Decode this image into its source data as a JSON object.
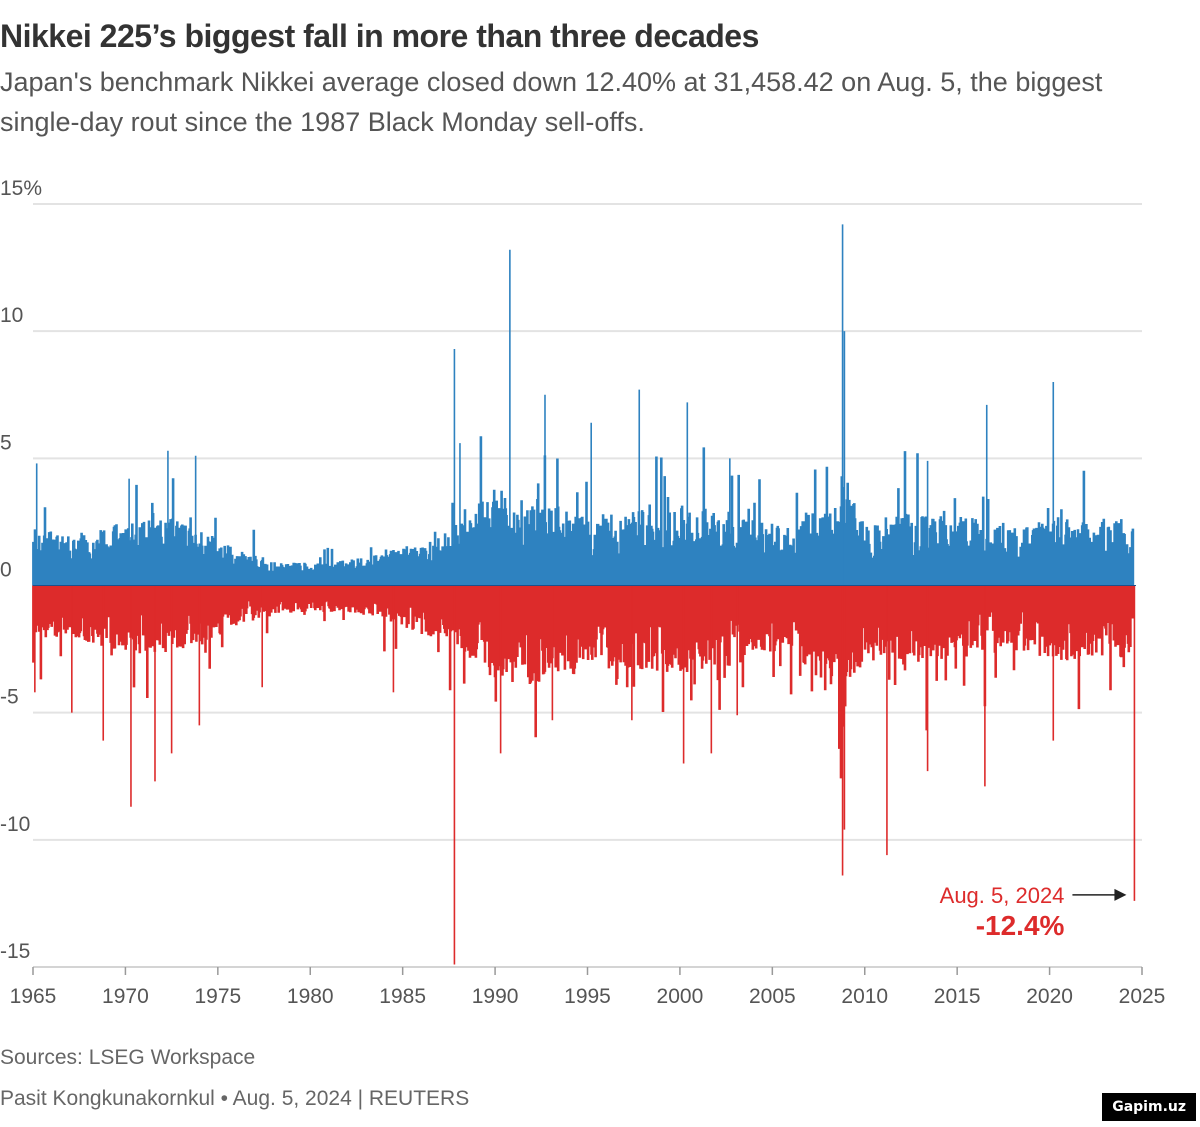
{
  "header": {
    "title": "Nikkei 225’s biggest fall in more than three decades",
    "subtitle": "Japan's benchmark Nikkei average closed down 12.40% at 31,458.42 on Aug. 5, the biggest single-day rout since the 1987 Black Monday sell-offs."
  },
  "footer": {
    "source": "Sources: LSEG Workspace",
    "credit": "Pasit Kongkunakornkul • Aug. 5, 2024 | REUTERS",
    "badge": "Gapim.uz"
  },
  "chart_data": {
    "type": "bar",
    "title": "Nikkei 225’s biggest fall in more than three decades",
    "xlabel": "",
    "ylabel": "",
    "xlim": [
      1965,
      2025
    ],
    "ylim": [
      -15,
      15
    ],
    "x_ticks": [
      "1965",
      "1970",
      "1975",
      "1980",
      "1985",
      "1990",
      "1995",
      "2000",
      "2005",
      "2010",
      "2015",
      "2020",
      "2025"
    ],
    "y_ticks": [
      {
        "value": 15,
        "label": "15%"
      },
      {
        "value": 10,
        "label": "10"
      },
      {
        "value": 5,
        "label": "5"
      },
      {
        "value": 0,
        "label": "0"
      },
      {
        "value": -5,
        "label": "-5"
      },
      {
        "value": -10,
        "label": "-10"
      },
      {
        "value": -15,
        "label": "-15"
      }
    ],
    "grid": true,
    "colors": {
      "positive": "#2e82c0",
      "negative": "#dd2b2b",
      "grid": "#e3e3e3",
      "axis": "#cfcfcf"
    },
    "series": [
      {
        "sign": "positive",
        "points": [
          [
            1965.2,
            4.8
          ],
          [
            1970.2,
            4.2
          ],
          [
            1972.3,
            5.3
          ],
          [
            1973.8,
            5.1
          ],
          [
            1987.8,
            9.3
          ],
          [
            1988.1,
            5.6
          ],
          [
            1990.8,
            13.2
          ],
          [
            1992.7,
            7.5
          ],
          [
            1995.2,
            6.4
          ],
          [
            1997.8,
            7.7
          ],
          [
            2000.4,
            7.2
          ],
          [
            2002.7,
            5.0
          ],
          [
            2008.8,
            14.2
          ],
          [
            2008.9,
            10.0
          ],
          [
            2013.4,
            4.9
          ],
          [
            2016.6,
            7.1
          ],
          [
            2020.2,
            8.0
          ]
        ],
        "envelope": [
          [
            1965,
            2.3
          ],
          [
            1967,
            2.0
          ],
          [
            1970,
            2.5
          ],
          [
            1972,
            2.8
          ],
          [
            1974,
            2.4
          ],
          [
            1976,
            1.4
          ],
          [
            1978,
            1.0
          ],
          [
            1980,
            0.9
          ],
          [
            1983,
            1.1
          ],
          [
            1985,
            1.5
          ],
          [
            1987,
            2.0
          ],
          [
            1988,
            2.5
          ],
          [
            1990,
            3.8
          ],
          [
            1992,
            3.5
          ],
          [
            1995,
            2.8
          ],
          [
            1998,
            3.0
          ],
          [
            2000,
            3.2
          ],
          [
            2003,
            2.9
          ],
          [
            2006,
            2.3
          ],
          [
            2008.8,
            4.5
          ],
          [
            2010,
            2.5
          ],
          [
            2013,
            3.0
          ],
          [
            2015,
            2.8
          ],
          [
            2018,
            2.4
          ],
          [
            2020,
            2.8
          ],
          [
            2024.5,
            2.6
          ]
        ]
      },
      {
        "sign": "negative",
        "points": [
          [
            1965.1,
            -4.2
          ],
          [
            1967.1,
            -5.0
          ],
          [
            1968.8,
            -6.1
          ],
          [
            1970.3,
            -8.7
          ],
          [
            1971.6,
            -7.7
          ],
          [
            1972.5,
            -6.6
          ],
          [
            1974.0,
            -5.5
          ],
          [
            1977.4,
            -4.0
          ],
          [
            1984.5,
            -4.2
          ],
          [
            1987.8,
            -14.9
          ],
          [
            1990.3,
            -6.6
          ],
          [
            1993.1,
            -5.3
          ],
          [
            1997.4,
            -5.3
          ],
          [
            2000.2,
            -7.0
          ],
          [
            2001.7,
            -6.6
          ],
          [
            2003.1,
            -5.1
          ],
          [
            2008.8,
            -11.4
          ],
          [
            2008.9,
            -9.6
          ],
          [
            2011.2,
            -10.6
          ],
          [
            2013.4,
            -7.3
          ],
          [
            2016.5,
            -7.9
          ],
          [
            2020.2,
            -6.1
          ],
          [
            2024.59,
            -12.4
          ]
        ],
        "envelope": [
          [
            1965,
            -2.0
          ],
          [
            1967,
            -2.1
          ],
          [
            1970,
            -2.6
          ],
          [
            1972,
            -2.7
          ],
          [
            1974,
            -2.4
          ],
          [
            1976,
            -1.6
          ],
          [
            1978,
            -1.2
          ],
          [
            1980,
            -1.0
          ],
          [
            1983,
            -1.2
          ],
          [
            1985,
            -1.6
          ],
          [
            1987,
            -2.2
          ],
          [
            1988,
            -2.4
          ],
          [
            1990,
            -3.8
          ],
          [
            1992,
            -4.0
          ],
          [
            1995,
            -3.0
          ],
          [
            1998,
            -3.3
          ],
          [
            2000,
            -3.6
          ],
          [
            2003,
            -3.1
          ],
          [
            2006,
            -2.4
          ],
          [
            2008.8,
            -5.0
          ],
          [
            2010,
            -2.9
          ],
          [
            2013,
            -3.2
          ],
          [
            2015,
            -3.0
          ],
          [
            2018,
            -2.5
          ],
          [
            2020,
            -3.0
          ],
          [
            2024.5,
            -2.8
          ]
        ]
      }
    ],
    "annotations": [
      {
        "x": 2024.59,
        "y": -12.4,
        "date": "Aug. 5, 2024",
        "value": "-12.4%"
      }
    ]
  }
}
